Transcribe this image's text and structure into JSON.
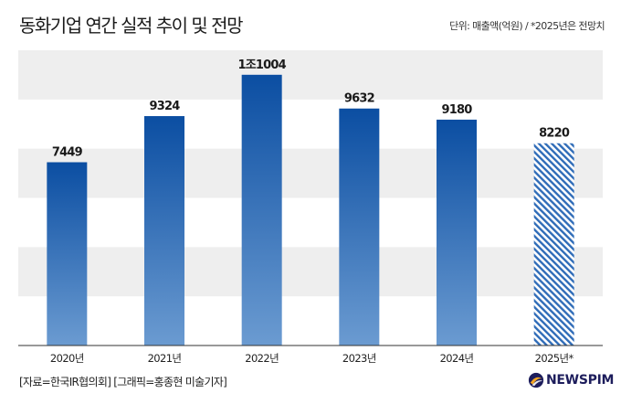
{
  "header": {
    "title": "동화기업 연간 실적 추이 및 전망",
    "unit_note": "단위: 매출액(억원) / *2025년은 전망치"
  },
  "footer": {
    "source": "[자료=한국IR협의회] [그래픽=홍종현 미술기자]",
    "logo_text": "NEWSPIM"
  },
  "colors": {
    "bar_top": "#0b4ea2",
    "bar_bottom": "#6b9bd1",
    "band": "#eeeeee",
    "forecast_hatch": "#2f6cb8"
  },
  "chart_data": {
    "type": "bar",
    "categories": [
      "2020년",
      "2021년",
      "2022년",
      "2023년",
      "2024년",
      "2025년*"
    ],
    "values": [
      7449,
      9324,
      11004,
      9632,
      9180,
      8220
    ],
    "value_labels": [
      "7449",
      "9324",
      "1조1004",
      "9632",
      "9180",
      "8220"
    ],
    "forecast_index": [
      5
    ],
    "ylim": [
      0,
      12000
    ],
    "grid": "alternating horizontal bands",
    "legend": "none"
  }
}
